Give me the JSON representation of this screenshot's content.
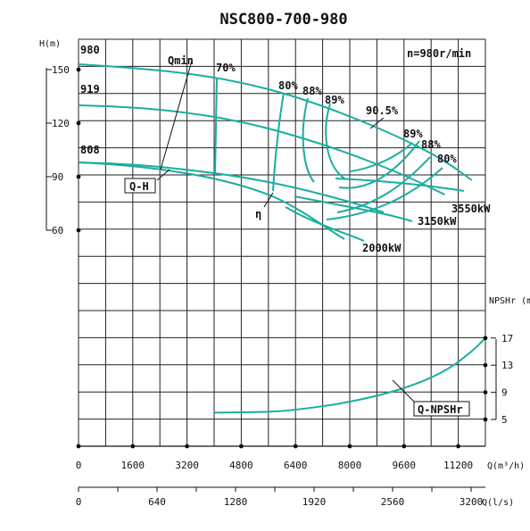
{
  "chart_data": {
    "type": "line",
    "title": "NSC800-700-980",
    "speed_label": "n=980r/min",
    "x_axis": {
      "label": "Q(m³/h)",
      "ticks": [
        0,
        1600,
        3200,
        4800,
        6400,
        8000,
        9600,
        11200
      ],
      "range": [
        0,
        12000
      ]
    },
    "x2_axis": {
      "label": "Q(l/s)",
      "ticks": [
        0,
        640,
        1280,
        1920,
        2560,
        3200
      ]
    },
    "y_axis_head": {
      "label": "H(m)",
      "ticks": [
        60,
        90,
        120,
        150
      ]
    },
    "y_axis_npsh": {
      "label": "NPSHr (m)",
      "ticks": [
        5,
        9,
        13,
        17
      ]
    },
    "diameter_labels": [
      "980",
      "919",
      "808"
    ],
    "series": [
      {
        "name": "Q-H",
        "curves": [
          {
            "diameter": "980",
            "points": [
              [
                0,
                153
              ],
              [
                1600,
                151
              ],
              [
                3200,
                148
              ],
              [
                4800,
                143
              ],
              [
                6400,
                135
              ],
              [
                8000,
                124
              ],
              [
                9600,
                111
              ],
              [
                10800,
                99
              ],
              [
                11600,
                88
              ]
            ]
          },
          {
            "diameter": "919",
            "points": [
              [
                0,
                130
              ],
              [
                1600,
                129
              ],
              [
                3200,
                126
              ],
              [
                4800,
                121
              ],
              [
                6400,
                113
              ],
              [
                8000,
                103
              ],
              [
                9600,
                91
              ],
              [
                10800,
                80
              ]
            ]
          },
          {
            "diameter": "808",
            "points": [
              [
                0,
                98
              ],
              [
                1600,
                97
              ],
              [
                3200,
                94
              ],
              [
                4800,
                90
              ],
              [
                6400,
                84
              ],
              [
                8000,
                76
              ],
              [
                9000,
                70
              ]
            ]
          }
        ]
      },
      {
        "name": "Q-NPSHr",
        "points": [
          [
            4000,
            6
          ],
          [
            5600,
            6.1
          ],
          [
            6400,
            6.4
          ],
          [
            8000,
            7.5
          ],
          [
            9600,
            9.5
          ],
          [
            10800,
            12
          ],
          [
            11600,
            15
          ],
          [
            12000,
            17
          ]
        ]
      }
    ],
    "efficiency_labels": [
      "70%",
      "80%",
      "88%",
      "89%",
      "90.5%",
      "89%",
      "88%",
      "80%"
    ],
    "power_labels": [
      "3550kW",
      "3150kW",
      "2000kW"
    ],
    "annotations": [
      "Qmin",
      "η"
    ]
  }
}
